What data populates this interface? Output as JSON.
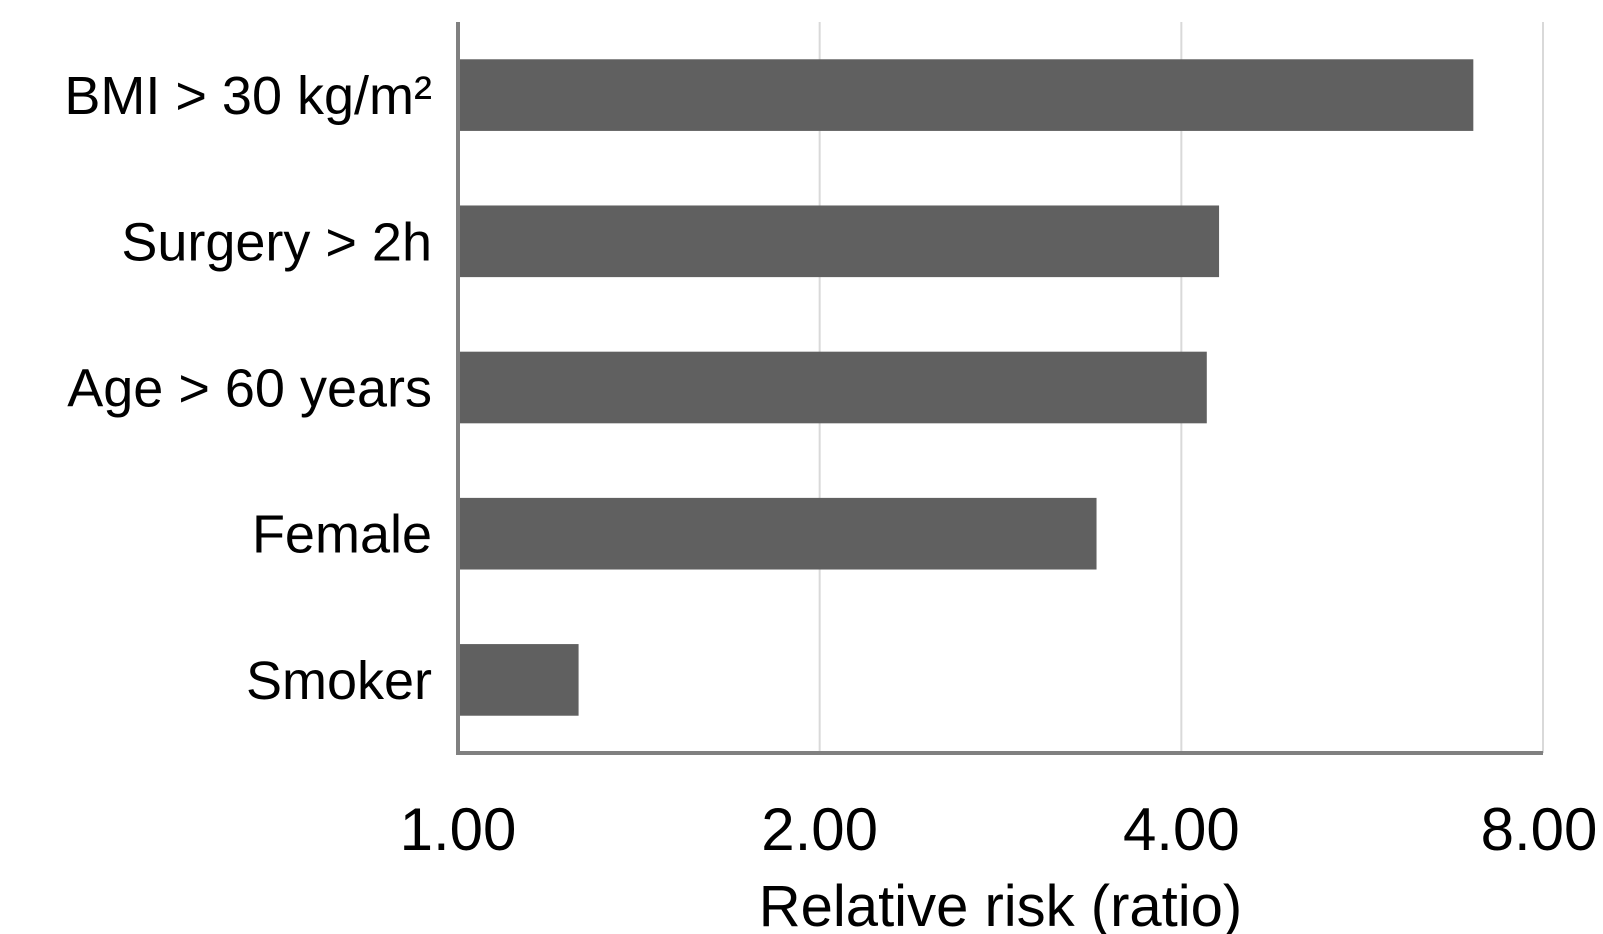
{
  "chart_data": {
    "type": "bar",
    "orientation": "horizontal",
    "x_scale": "log2",
    "categories": [
      "BMI > 30 kg/m²",
      "Surgery > 2h",
      "Age > 60 years",
      "Female",
      "Smoker"
    ],
    "values": [
      7.0,
      4.3,
      4.2,
      3.4,
      1.26
    ],
    "xlabel": "Relative risk (ratio)",
    "xlim": [
      1,
      8
    ],
    "x_ticks": [
      1,
      2,
      4,
      8
    ],
    "x_tick_labels": [
      "1.00",
      "2.00",
      "4.00",
      "8.00"
    ],
    "grid": "vertical",
    "colors": {
      "bar": "#606060",
      "axis": "#808080",
      "grid": "#d9d9d9"
    }
  }
}
